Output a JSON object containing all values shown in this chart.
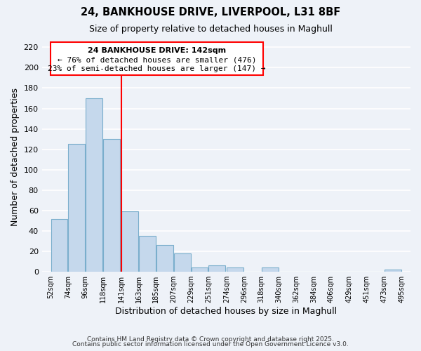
{
  "title_line1": "24, BANKHOUSE DRIVE, LIVERPOOL, L31 8BF",
  "title_line2": "Size of property relative to detached houses in Maghull",
  "xlabel": "Distribution of detached houses by size in Maghull",
  "ylabel": "Number of detached properties",
  "bar_left_edges": [
    52,
    74,
    96,
    118,
    141,
    163,
    185,
    207,
    229,
    251,
    274,
    296,
    318,
    340,
    362,
    384,
    406,
    429,
    451,
    473
  ],
  "bar_widths": [
    22,
    22,
    22,
    22,
    22,
    22,
    22,
    22,
    22,
    22,
    22,
    22,
    22,
    22,
    22,
    22,
    22,
    22,
    22,
    22
  ],
  "bar_heights": [
    52,
    125,
    170,
    130,
    59,
    35,
    26,
    18,
    4,
    6,
    4,
    0,
    4,
    0,
    0,
    0,
    0,
    0,
    0,
    2
  ],
  "bar_color": "#c5d8ec",
  "bar_edgecolor": "#7aaecc",
  "redline_x": 141,
  "ylim": [
    0,
    225
  ],
  "yticks": [
    0,
    20,
    40,
    60,
    80,
    100,
    120,
    140,
    160,
    180,
    200,
    220
  ],
  "xtick_labels": [
    "52sqm",
    "74sqm",
    "96sqm",
    "118sqm",
    "141sqm",
    "163sqm",
    "185sqm",
    "207sqm",
    "229sqm",
    "251sqm",
    "274sqm",
    "296sqm",
    "318sqm",
    "340sqm",
    "362sqm",
    "384sqm",
    "406sqm",
    "429sqm",
    "451sqm",
    "473sqm",
    "495sqm"
  ],
  "xtick_positions": [
    52,
    74,
    96,
    118,
    141,
    163,
    185,
    207,
    229,
    251,
    274,
    296,
    318,
    340,
    362,
    384,
    406,
    429,
    451,
    473,
    495
  ],
  "annotation_line1": "24 BANKHOUSE DRIVE: 142sqm",
  "annotation_line2": "← 76% of detached houses are smaller (476)",
  "annotation_line3": "23% of semi-detached houses are larger (147) →",
  "footer_line1": "Contains HM Land Registry data © Crown copyright and database right 2025.",
  "footer_line2": "Contains public sector information licensed under the Open Government Licence v3.0.",
  "background_color": "#eef2f8",
  "grid_color": "#ffffff"
}
